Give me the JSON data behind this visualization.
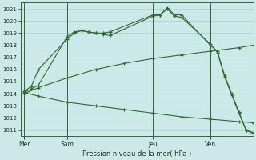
{
  "bg_color": "#cce8e8",
  "grid_color": "#99cccc",
  "line_color": "#2d6a2d",
  "ylim": [
    1010.5,
    1021.5
  ],
  "yticks": [
    1011,
    1012,
    1013,
    1014,
    1015,
    1016,
    1017,
    1018,
    1019,
    1020,
    1021
  ],
  "xlabel": "Pression niveau de la mer( hPa )",
  "day_labels": [
    "Mer",
    "Sam",
    "Jeu",
    "Ven"
  ],
  "day_positions": [
    0,
    6,
    18,
    26
  ],
  "xlim": [
    -0.5,
    32
  ],
  "line1_x": [
    0,
    1,
    2,
    6,
    7,
    8,
    9,
    10,
    11,
    12,
    18,
    19,
    20,
    21,
    22,
    26,
    27,
    28,
    29,
    30,
    31,
    32
  ],
  "line1_y": [
    1014.1,
    1014.4,
    1014.7,
    1018.7,
    1019.1,
    1019.2,
    1019.1,
    1019.0,
    1019.0,
    1019.1,
    1020.5,
    1020.5,
    1021.1,
    1020.5,
    1020.5,
    1018.0,
    1017.5,
    1015.5,
    1014.0,
    1012.5,
    1011.0,
    1010.7
  ],
  "line2_x": [
    0,
    1,
    2,
    6,
    7,
    8,
    9,
    10,
    11,
    12,
    18,
    19,
    20,
    21,
    22,
    26,
    27,
    28,
    29,
    30,
    31,
    32
  ],
  "line2_y": [
    1014.2,
    1014.6,
    1016.0,
    1018.5,
    1019.0,
    1019.2,
    1019.1,
    1019.0,
    1018.9,
    1018.8,
    1020.4,
    1020.5,
    1021.0,
    1020.4,
    1020.3,
    1018.1,
    1017.4,
    1015.4,
    1013.9,
    1012.4,
    1011.0,
    1010.8
  ],
  "line3_x": [
    0,
    2,
    6,
    10,
    14,
    18,
    22,
    26,
    30,
    32
  ],
  "line3_y": [
    1014.0,
    1014.5,
    1015.3,
    1016.0,
    1016.5,
    1016.9,
    1017.2,
    1017.5,
    1017.8,
    1018.0
  ],
  "line4_x": [
    0,
    2,
    6,
    10,
    14,
    18,
    22,
    26,
    30,
    32
  ],
  "line4_y": [
    1014.1,
    1013.8,
    1013.3,
    1013.0,
    1012.7,
    1012.4,
    1012.1,
    1011.9,
    1011.7,
    1011.6
  ]
}
